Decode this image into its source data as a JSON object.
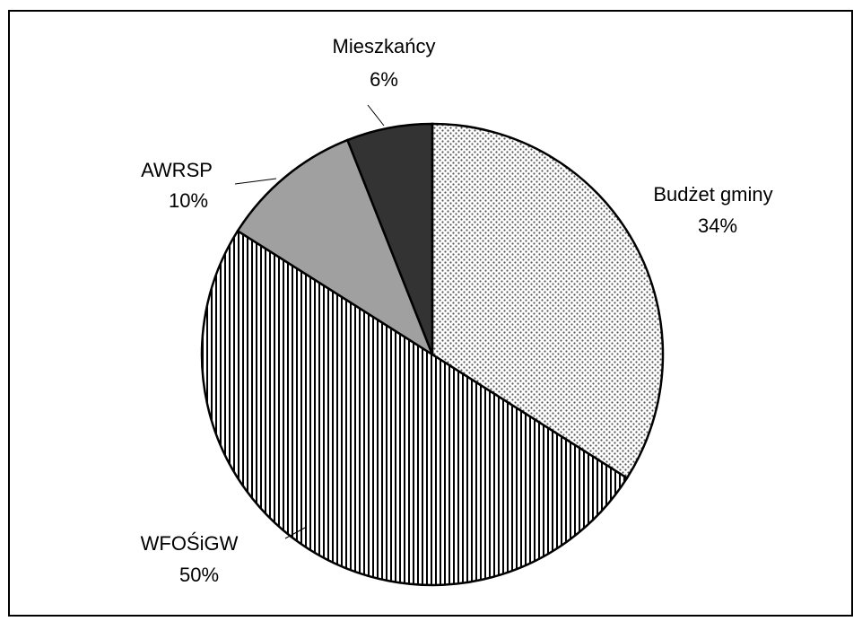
{
  "chart_data": {
    "type": "pie",
    "categories": [
      "Budżet gminy",
      "WFOŚiGW",
      "AWRSP",
      "Mieszkańcy"
    ],
    "values": [
      34,
      50,
      10,
      6
    ],
    "value_labels": [
      "34%",
      "50%",
      "10%",
      "6%"
    ],
    "colors": [
      "#ffffff",
      "#ffffff",
      "#a0a0a0",
      "#333333"
    ],
    "patterns": [
      "dots",
      "vstripes",
      null,
      null
    ]
  }
}
